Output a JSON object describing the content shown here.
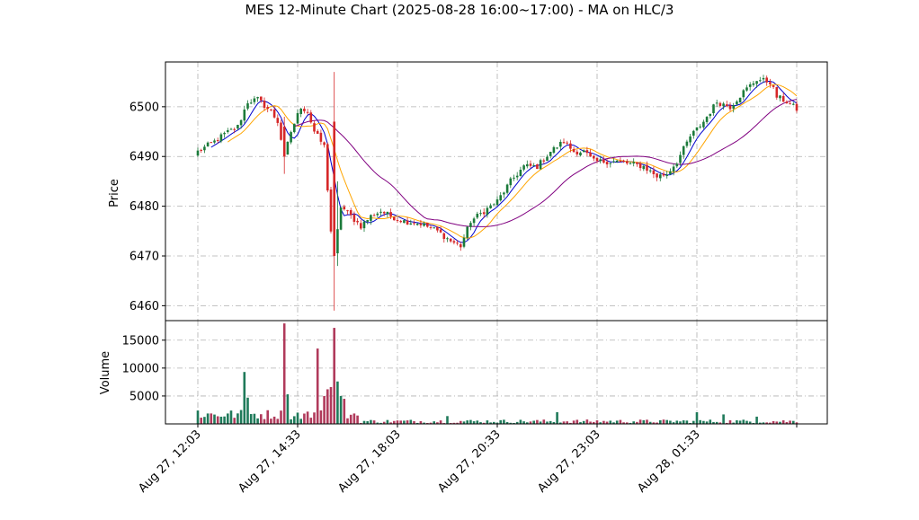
{
  "chart_data": {
    "type": "candlestick",
    "title": "MES 12-Minute Chart (2025-08-28 16:00~17:00) - MA on HLC/3",
    "price_panel": {
      "ylabel": "Price",
      "ylim": [
        6457,
        6509
      ],
      "yticks": [
        6460,
        6470,
        6480,
        6490,
        6500
      ],
      "grid": true
    },
    "volume_panel": {
      "ylabel": "Volume",
      "ylim": [
        0,
        18500
      ],
      "yticks": [
        5000,
        10000,
        15000
      ],
      "grid": true
    },
    "x_tick_labels": [
      "Aug 27, 12:03",
      "Aug 27, 14:33",
      "Aug 27, 18:03",
      "Aug 27, 20:33",
      "Aug 27, 23:03",
      "Aug 28, 01:33"
    ],
    "x_tick_index": [
      0,
      30,
      60,
      90,
      120,
      150
    ],
    "bar_count": 181,
    "colors": {
      "up": "#1b7a3a",
      "down": "#d62728",
      "ma_fast": "#0000cc",
      "ma_mid": "#ffa500",
      "ma_slow": "#800080",
      "volume_up": "#1f7a5a",
      "volume_down": "#b03a5b"
    },
    "price_anchors": [
      [
        0,
        6491
      ],
      [
        5,
        6493
      ],
      [
        8,
        6494.5
      ],
      [
        12,
        6496
      ],
      [
        15,
        6501
      ],
      [
        18,
        6501.5
      ],
      [
        22,
        6499
      ],
      [
        24,
        6497
      ],
      [
        26,
        6490
      ],
      [
        28,
        6495
      ],
      [
        31,
        6500
      ],
      [
        33,
        6499
      ],
      [
        35,
        6495
      ],
      [
        38,
        6492
      ],
      [
        40,
        6475
      ],
      [
        41,
        6470
      ],
      [
        43,
        6480
      ],
      [
        46,
        6478
      ],
      [
        49,
        6476
      ],
      [
        52,
        6478
      ],
      [
        55,
        6479
      ],
      [
        58,
        6478
      ],
      [
        62,
        6477
      ],
      [
        67,
        6476.5
      ],
      [
        72,
        6475
      ],
      [
        76,
        6473
      ],
      [
        79,
        6472
      ],
      [
        82,
        6477
      ],
      [
        86,
        6479
      ],
      [
        90,
        6481
      ],
      [
        94,
        6485
      ],
      [
        98,
        6488
      ],
      [
        102,
        6488
      ],
      [
        106,
        6491
      ],
      [
        110,
        6493
      ],
      [
        113,
        6491
      ],
      [
        116,
        6491
      ],
      [
        119,
        6489
      ],
      [
        122,
        6489
      ],
      [
        126,
        6489
      ],
      [
        130,
        6488.5
      ],
      [
        134,
        6488
      ],
      [
        138,
        6486
      ],
      [
        141,
        6486.5
      ],
      [
        144,
        6489
      ],
      [
        148,
        6494
      ],
      [
        152,
        6497
      ],
      [
        156,
        6501
      ],
      [
        160,
        6500
      ],
      [
        164,
        6503
      ],
      [
        168,
        6505.5
      ],
      [
        172,
        6505
      ],
      [
        174,
        6502
      ],
      [
        177,
        6501
      ],
      [
        180,
        6499.5
      ]
    ],
    "volume_spikes": [
      [
        0,
        2400
      ],
      [
        14,
        9300
      ],
      [
        15,
        4700
      ],
      [
        26,
        18000
      ],
      [
        27,
        5300
      ],
      [
        36,
        13500
      ],
      [
        38,
        5000
      ],
      [
        39,
        6200
      ],
      [
        40,
        6600
      ],
      [
        41,
        17200
      ],
      [
        42,
        7600
      ],
      [
        43,
        5000
      ],
      [
        44,
        4500
      ],
      [
        48,
        1500
      ],
      [
        75,
        1400
      ],
      [
        108,
        2100
      ],
      [
        150,
        2100
      ],
      [
        158,
        1700
      ],
      [
        168,
        1300
      ]
    ],
    "spikes_high_low": [
      [
        26,
        6498,
        6486.5
      ],
      [
        41,
        6507,
        6459
      ],
      [
        42,
        6485,
        6468
      ]
    ],
    "moving_averages": [
      {
        "window": 5,
        "color": "#0000cc"
      },
      {
        "window": 10,
        "color": "#ffa500"
      },
      {
        "window": 30,
        "color": "#800080"
      }
    ]
  }
}
